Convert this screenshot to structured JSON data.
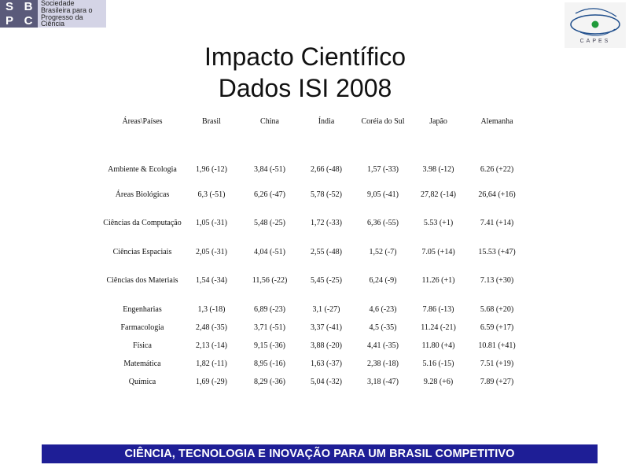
{
  "logos": {
    "sbpc_mark": [
      "S",
      "B",
      "P",
      "C"
    ],
    "sbpc_text": [
      "Sociedade",
      "Brasileira para o",
      "Progresso da",
      "Ciência"
    ],
    "capes_label": "CAPES"
  },
  "title": {
    "line1": "Impacto Científico",
    "line2": "Dados ISI 2008"
  },
  "table": {
    "headers": [
      "Áreas\\Países",
      "Brasil",
      "China",
      "Índia",
      "Coréia do Sul",
      "Japão",
      "Alemanha"
    ],
    "rows": [
      {
        "area": "Ambiente & Ecologia",
        "values": [
          "1,96 (-12)",
          "3,84 (-51)",
          "2,66 (-48)",
          "1,57 (-33)",
          "3.98 (-12)",
          "6.26 (+22)"
        ]
      },
      {
        "area": "Áreas Biológicas",
        "values": [
          "6,3 (-51)",
          "6,26 (-47)",
          "5,78 (-52)",
          "9,05 (-41)",
          "27,82 (-14)",
          "26,64 (+16)"
        ]
      },
      {
        "area": "Ciências da Computação",
        "values": [
          "1,05 (-31)",
          "5,48 (-25)",
          "1,72 (-33)",
          "6,36 (-55)",
          "5.53 (+1)",
          "7.41 (+14)"
        ]
      },
      {
        "area": "Ciências Espaciais",
        "values": [
          "2,05 (-31)",
          "4,04 (-51)",
          "2,55 (-48)",
          "1,52 (-7)",
          "7.05 (+14)",
          "15.53 (+47)"
        ]
      },
      {
        "area": "Ciências dos Materiais",
        "values": [
          "1,54 (-34)",
          "11,56 (-22)",
          "5,45 (-25)",
          "6,24 (-9)",
          "11.26 (+1)",
          "7.13 (+30)"
        ]
      },
      {
        "area": "Engenharias",
        "values": [
          "1,3 (-18)",
          "6,89 (-23)",
          "3,1 (-27)",
          "4,6 (-23)",
          "7.86 (-13)",
          "5.68 (+20)"
        ]
      },
      {
        "area": "Farmacologia",
        "values": [
          "2,48 (-35)",
          "3,71 (-51)",
          "3,37 (-41)",
          "4,5 (-35)",
          "11.24 (-21)",
          "6.59 (+17)"
        ]
      },
      {
        "area": "Física",
        "values": [
          "2,13 (-14)",
          "9,15 (-36)",
          "3,88 (-20)",
          "4,41 (-35)",
          "11.80 (+4)",
          "10.81 (+41)"
        ]
      },
      {
        "area": "Matemática",
        "values": [
          "1,82 (-11)",
          "8,95 (-16)",
          "1,63 (-37)",
          "2,38 (-18)",
          "5.16 (-15)",
          "7.51 (+19)"
        ]
      },
      {
        "area": "Química",
        "values": [
          "1,69 (-29)",
          "8,29 (-36)",
          "5,04 (-32)",
          "3,18 (-47)",
          "9.28 (+6)",
          "7.89 (+27)"
        ]
      }
    ]
  },
  "footer": {
    "text": "CIÊNCIA, TECNOLOGIA E INOVAÇÃO PARA UM BRASIL COMPETITIVO"
  },
  "colors": {
    "footer_bg": "#1e1e96",
    "sbpc_mark_bg": "#5a5a7a",
    "sbpc_bg": "#d4d4e6",
    "capes_green": "#1f9a3a",
    "capes_blue": "#1f4e8c"
  }
}
